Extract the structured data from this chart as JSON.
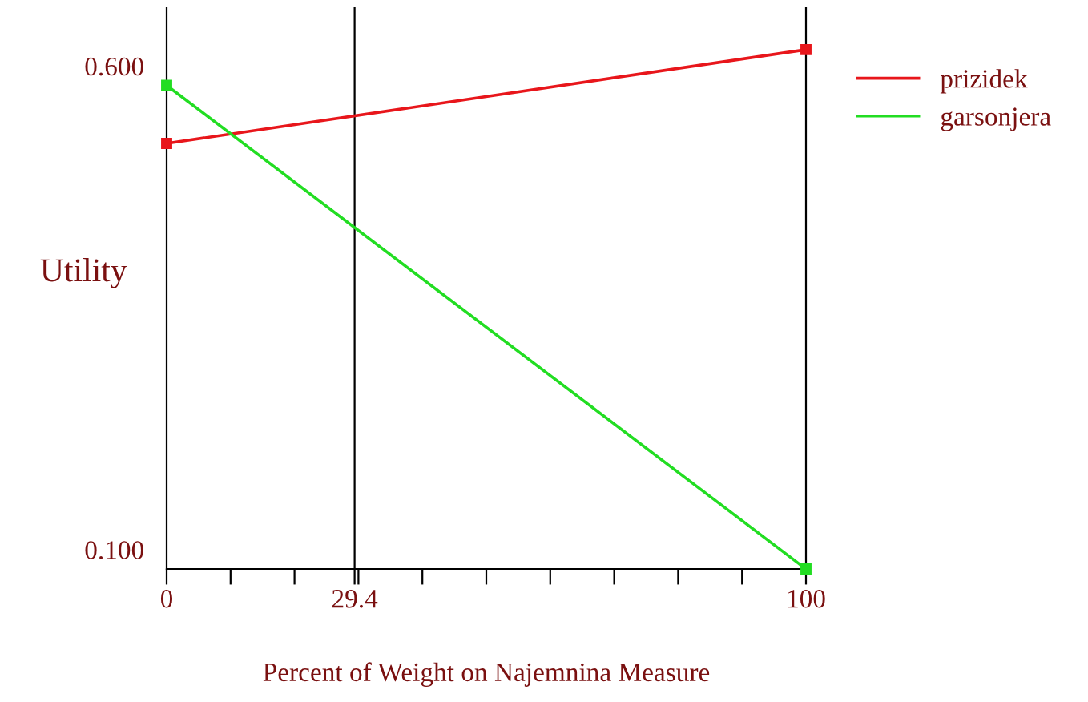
{
  "chart_data": {
    "type": "line",
    "xlabel": "Percent of Weight on Najemnina Measure",
    "ylabel": "Utility",
    "x": [
      0,
      100
    ],
    "series": [
      {
        "name": "prizidek",
        "color": "#e8161b",
        "values": [
          0.52,
          0.617
        ]
      },
      {
        "name": "garsonjera",
        "color": "#22dd22",
        "values": [
          0.58,
          0.08
        ]
      }
    ],
    "xlim": [
      0,
      100
    ],
    "ylim": [
      0.08,
      0.66
    ],
    "xticks": [
      0,
      {
        "value": 10,
        "label": null
      },
      {
        "value": 20,
        "label": null
      },
      {
        "value": 29.4,
        "label": "29.4"
      },
      {
        "value": 30,
        "label": null
      },
      {
        "value": 40,
        "label": null
      },
      {
        "value": 50,
        "label": null
      },
      {
        "value": 60,
        "label": null
      },
      {
        "value": 70,
        "label": null
      },
      {
        "value": 80,
        "label": null
      },
      {
        "value": 90,
        "label": null
      },
      100
    ],
    "yticks": [
      {
        "value": 0.1,
        "label": "0.100"
      },
      {
        "value": 0.6,
        "label": "0.600"
      }
    ],
    "ref_lines": [
      {
        "axis": "x",
        "value": 29.4,
        "color": "#000000"
      }
    ],
    "marker": "square",
    "line_style": "solid",
    "grid": false,
    "legend": "top right"
  }
}
